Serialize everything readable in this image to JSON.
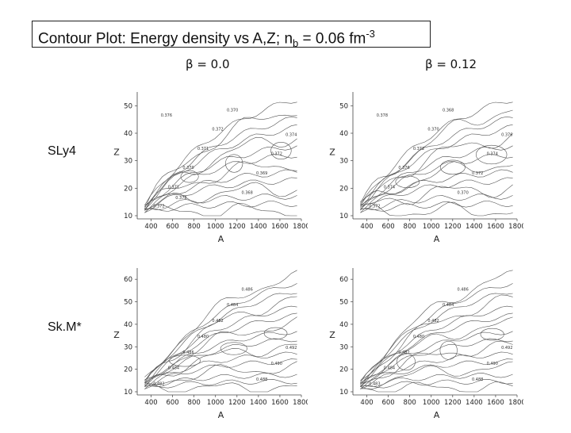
{
  "slide": {
    "title_main": "Contour Plot: Energy density vs A,Z;  n",
    "title_sub": "b",
    "title_mid": " = 0.06 fm",
    "title_sup": "-3"
  },
  "columns": [
    "β = 0.0",
    "β = 0.12"
  ],
  "rows": [
    "SLy4",
    "Sk.M*"
  ],
  "axes": {
    "xlabel": "A",
    "ylabel": "Z",
    "x_ticks": [
      "400",
      "600",
      "800",
      "1000",
      "1200",
      "1400",
      "1600",
      "1800"
    ],
    "y_ticks_top": [
      "10",
      "20",
      "30",
      "40",
      "50"
    ],
    "y_ticks_bottom": [
      "10",
      "20",
      "30",
      "40",
      "50",
      "60"
    ]
  },
  "panels": [
    {
      "id": "sly4-b0",
      "labels": [
        "0.372",
        "0.371",
        "0.370",
        "0.371",
        "0.372",
        "0.370",
        "0.368",
        "0.369",
        "0.372",
        "0.374",
        "0.376",
        "0.378"
      ]
    },
    {
      "id": "sly4-b012",
      "labels": [
        "0.372",
        "0.374",
        "0.376",
        "0.372",
        "0.370",
        "0.368",
        "0.370",
        "0.372",
        "0.374",
        "0.376",
        "0.378"
      ]
    },
    {
      "id": "skm-b0",
      "labels": [
        "0.482",
        "0.484",
        "0.486",
        "0.480",
        "0.482",
        "0.484",
        "0.486",
        "0.488",
        "0.490",
        "0.492"
      ]
    },
    {
      "id": "skm-b012",
      "labels": [
        "0.483",
        "0.484",
        "0.482",
        "0.480",
        "0.482",
        "0.484",
        "0.486",
        "0.488",
        "0.490",
        "0.492"
      ]
    }
  ]
}
